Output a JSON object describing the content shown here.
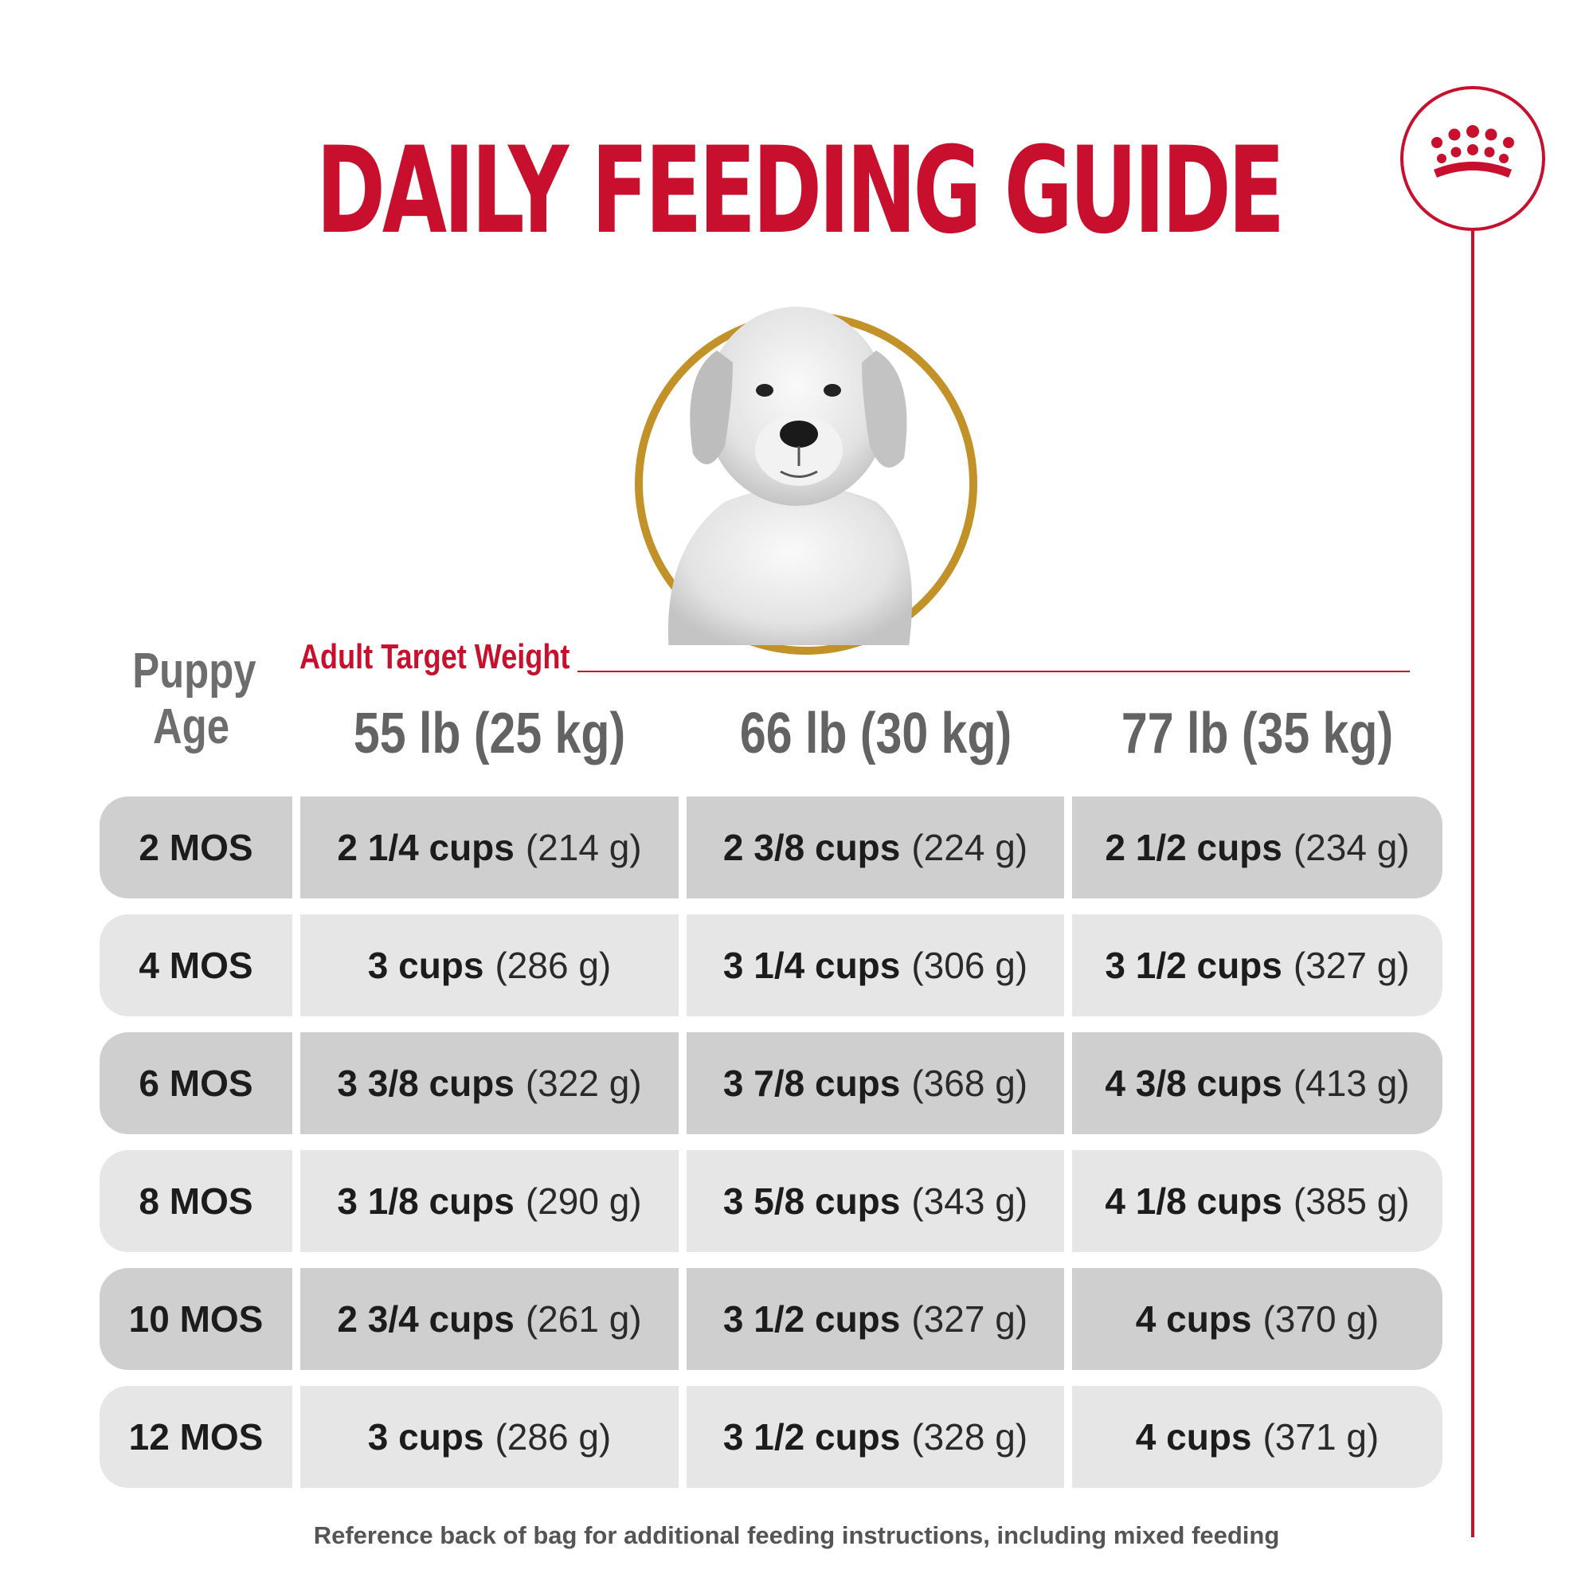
{
  "title": "DAILY FEEDING GUIDE",
  "logo": {
    "icon": "crown-icon",
    "color": "#c8102e"
  },
  "colors": {
    "accent": "#c8102e",
    "ring": "#c29127",
    "row_dark": "#cfcfcf",
    "row_light": "#e6e6e6"
  },
  "table": {
    "age_header": "Puppy Age",
    "target_header": "Adult Target Weight",
    "weights": [
      "55 lb (25 kg)",
      "66 lb (30 kg)",
      "77 lb (35 kg)"
    ],
    "rows": [
      {
        "age": "2 MOS",
        "cells": [
          {
            "cups": "2 1/4 cups",
            "grams": "(214 g)"
          },
          {
            "cups": "2 3/8 cups",
            "grams": "(224 g)"
          },
          {
            "cups": "2 1/2 cups",
            "grams": "(234 g)"
          }
        ]
      },
      {
        "age": "4 MOS",
        "cells": [
          {
            "cups": "3 cups",
            "grams": "(286 g)"
          },
          {
            "cups": "3 1/4 cups",
            "grams": "(306 g)"
          },
          {
            "cups": "3 1/2 cups",
            "grams": "(327 g)"
          }
        ]
      },
      {
        "age": "6 MOS",
        "cells": [
          {
            "cups": "3 3/8 cups",
            "grams": "(322 g)"
          },
          {
            "cups": "3 7/8 cups",
            "grams": "(368 g)"
          },
          {
            "cups": "4 3/8 cups",
            "grams": "(413 g)"
          }
        ]
      },
      {
        "age": "8 MOS",
        "cells": [
          {
            "cups": "3 1/8 cups",
            "grams": "(290 g)"
          },
          {
            "cups": "3 5/8 cups",
            "grams": "(343 g)"
          },
          {
            "cups": "4 1/8 cups",
            "grams": "(385 g)"
          }
        ]
      },
      {
        "age": "10 MOS",
        "cells": [
          {
            "cups": "2 3/4 cups",
            "grams": "(261 g)"
          },
          {
            "cups": "3 1/2 cups",
            "grams": "(327 g)"
          },
          {
            "cups": "4 cups",
            "grams": "(370 g)"
          }
        ]
      },
      {
        "age": "12 MOS",
        "cells": [
          {
            "cups": "3 cups",
            "grams": "(286 g)"
          },
          {
            "cups": "3 1/2 cups",
            "grams": "(328 g)"
          },
          {
            "cups": "4 cups",
            "grams": "(371 g)"
          }
        ]
      }
    ]
  },
  "footnote": "Reference back of bag for additional feeding instructions, including mixed feeding"
}
